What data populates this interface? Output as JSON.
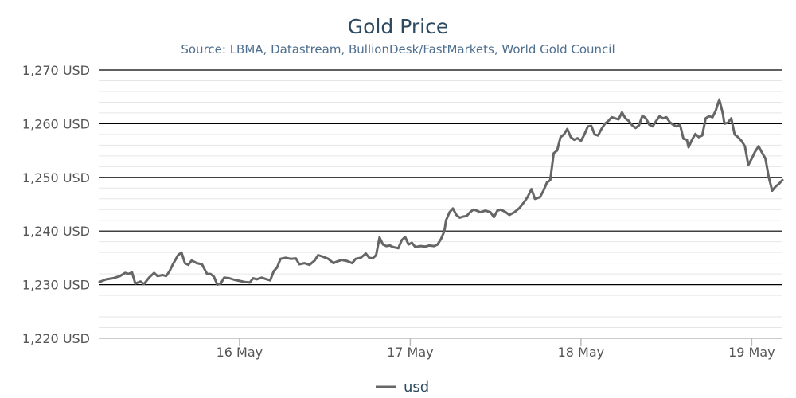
{
  "chart_data": {
    "type": "line",
    "title": "Gold Price",
    "subtitle": "Source: LBMA, Datastream, BullionDesk/FastMarkets, World Gold Council",
    "xlabel": "",
    "ylabel": "",
    "x_unit": "days",
    "x_ticks": [
      {
        "x": 1,
        "label": "16 May"
      },
      {
        "x": 2,
        "label": "17 May"
      },
      {
        "x": 3,
        "label": "18 May"
      },
      {
        "x": 4,
        "label": "19 May"
      }
    ],
    "xlim": [
      0.18,
      4.18
    ],
    "ylim": [
      1220,
      1270
    ],
    "y_ticks": [
      {
        "value": 1220,
        "label": "1,220 USD"
      },
      {
        "value": 1230,
        "label": "1,230 USD"
      },
      {
        "value": 1240,
        "label": "1,240 USD"
      },
      {
        "value": 1250,
        "label": "1,250 USD"
      },
      {
        "value": 1260,
        "label": "1,260 USD"
      },
      {
        "value": 1270,
        "label": "1,270 USD"
      }
    ],
    "grid": true,
    "legend_position": "bottom-center",
    "colors": {
      "line": "#666666",
      "title": "#2e4a60",
      "subtitle": "#4f6f8f",
      "major_grid": "#000000",
      "minor_grid": "#e6e6e6",
      "axis": "#bbbbbb"
    },
    "series": [
      {
        "name": "usd",
        "points": [
          [
            0.18,
            1230.5
          ],
          [
            0.22,
            1231.0
          ],
          [
            0.26,
            1231.2
          ],
          [
            0.3,
            1231.6
          ],
          [
            0.33,
            1232.2
          ],
          [
            0.35,
            1232.0
          ],
          [
            0.37,
            1232.3
          ],
          [
            0.39,
            1230.2
          ],
          [
            0.42,
            1230.6
          ],
          [
            0.44,
            1230.1
          ],
          [
            0.47,
            1231.3
          ],
          [
            0.5,
            1232.2
          ],
          [
            0.52,
            1231.6
          ],
          [
            0.55,
            1231.8
          ],
          [
            0.57,
            1231.6
          ],
          [
            0.59,
            1232.5
          ],
          [
            0.61,
            1233.8
          ],
          [
            0.64,
            1235.5
          ],
          [
            0.66,
            1236.0
          ],
          [
            0.68,
            1234.0
          ],
          [
            0.7,
            1233.7
          ],
          [
            0.72,
            1234.5
          ],
          [
            0.75,
            1234.0
          ],
          [
            0.78,
            1233.8
          ],
          [
            0.81,
            1232.0
          ],
          [
            0.83,
            1232.0
          ],
          [
            0.85,
            1231.5
          ],
          [
            0.87,
            1230.0
          ],
          [
            0.89,
            1230.2
          ],
          [
            0.91,
            1231.3
          ],
          [
            0.94,
            1231.2
          ],
          [
            0.97,
            1230.9
          ],
          [
            1.0,
            1230.7
          ],
          [
            1.03,
            1230.5
          ],
          [
            1.06,
            1230.4
          ],
          [
            1.08,
            1231.2
          ],
          [
            1.1,
            1231.0
          ],
          [
            1.13,
            1231.3
          ],
          [
            1.16,
            1231.0
          ],
          [
            1.18,
            1230.8
          ],
          [
            1.2,
            1232.5
          ],
          [
            1.22,
            1233.2
          ],
          [
            1.24,
            1234.8
          ],
          [
            1.27,
            1235.0
          ],
          [
            1.3,
            1234.8
          ],
          [
            1.33,
            1234.9
          ],
          [
            1.35,
            1233.8
          ],
          [
            1.38,
            1234.0
          ],
          [
            1.41,
            1233.7
          ],
          [
            1.44,
            1234.5
          ],
          [
            1.46,
            1235.5
          ],
          [
            1.49,
            1235.2
          ],
          [
            1.52,
            1234.8
          ],
          [
            1.55,
            1234.0
          ],
          [
            1.57,
            1234.3
          ],
          [
            1.6,
            1234.6
          ],
          [
            1.63,
            1234.4
          ],
          [
            1.66,
            1234.0
          ],
          [
            1.68,
            1234.8
          ],
          [
            1.71,
            1235.0
          ],
          [
            1.74,
            1235.8
          ],
          [
            1.76,
            1235.0
          ],
          [
            1.78,
            1234.9
          ],
          [
            1.8,
            1235.5
          ],
          [
            1.82,
            1238.8
          ],
          [
            1.84,
            1237.5
          ],
          [
            1.86,
            1237.2
          ],
          [
            1.88,
            1237.3
          ],
          [
            1.9,
            1237.0
          ],
          [
            1.93,
            1236.8
          ],
          [
            1.95,
            1238.3
          ],
          [
            1.97,
            1238.9
          ],
          [
            1.99,
            1237.5
          ],
          [
            2.01,
            1237.8
          ],
          [
            2.03,
            1237.0
          ],
          [
            2.06,
            1237.2
          ],
          [
            2.09,
            1237.1
          ],
          [
            2.11,
            1237.3
          ],
          [
            2.14,
            1237.2
          ],
          [
            2.16,
            1237.5
          ],
          [
            2.18,
            1238.5
          ],
          [
            2.2,
            1240.0
          ],
          [
            2.21,
            1242.0
          ],
          [
            2.23,
            1243.5
          ],
          [
            2.25,
            1244.2
          ],
          [
            2.27,
            1243.0
          ],
          [
            2.29,
            1242.5
          ],
          [
            2.31,
            1242.7
          ],
          [
            2.33,
            1242.8
          ],
          [
            2.35,
            1243.5
          ],
          [
            2.37,
            1244.0
          ],
          [
            2.39,
            1243.8
          ],
          [
            2.41,
            1243.5
          ],
          [
            2.44,
            1243.8
          ],
          [
            2.47,
            1243.5
          ],
          [
            2.49,
            1242.6
          ],
          [
            2.51,
            1243.8
          ],
          [
            2.53,
            1244.0
          ],
          [
            2.56,
            1243.5
          ],
          [
            2.58,
            1243.0
          ],
          [
            2.61,
            1243.5
          ],
          [
            2.64,
            1244.3
          ],
          [
            2.67,
            1245.5
          ],
          [
            2.69,
            1246.5
          ],
          [
            2.71,
            1247.8
          ],
          [
            2.73,
            1246.0
          ],
          [
            2.76,
            1246.3
          ],
          [
            2.78,
            1247.5
          ],
          [
            2.8,
            1249.0
          ],
          [
            2.82,
            1249.5
          ],
          [
            2.84,
            1254.5
          ],
          [
            2.86,
            1255.0
          ],
          [
            2.88,
            1257.5
          ],
          [
            2.9,
            1258.0
          ],
          [
            2.92,
            1259.0
          ],
          [
            2.94,
            1257.5
          ],
          [
            2.96,
            1257.0
          ],
          [
            2.98,
            1257.3
          ],
          [
            3.0,
            1256.8
          ],
          [
            3.02,
            1258.0
          ],
          [
            3.04,
            1259.5
          ],
          [
            3.06,
            1259.6
          ],
          [
            3.08,
            1258.0
          ],
          [
            3.1,
            1257.8
          ],
          [
            3.12,
            1259.0
          ],
          [
            3.14,
            1260.0
          ],
          [
            3.16,
            1260.5
          ],
          [
            3.18,
            1261.2
          ],
          [
            3.2,
            1261.0
          ],
          [
            3.22,
            1260.8
          ],
          [
            3.24,
            1262.1
          ],
          [
            3.26,
            1261.0
          ],
          [
            3.28,
            1260.5
          ],
          [
            3.3,
            1259.7
          ],
          [
            3.32,
            1259.2
          ],
          [
            3.34,
            1259.7
          ],
          [
            3.36,
            1261.5
          ],
          [
            3.38,
            1261.0
          ],
          [
            3.4,
            1259.8
          ],
          [
            3.42,
            1259.5
          ],
          [
            3.44,
            1260.5
          ],
          [
            3.46,
            1261.4
          ],
          [
            3.48,
            1261.0
          ],
          [
            3.5,
            1261.2
          ],
          [
            3.52,
            1260.3
          ],
          [
            3.54,
            1259.8
          ],
          [
            3.56,
            1259.5
          ],
          [
            3.58,
            1259.8
          ],
          [
            3.6,
            1257.2
          ],
          [
            3.62,
            1257.0
          ],
          [
            3.63,
            1255.6
          ],
          [
            3.65,
            1257.0
          ],
          [
            3.67,
            1258.1
          ],
          [
            3.69,
            1257.5
          ],
          [
            3.71,
            1257.8
          ],
          [
            3.73,
            1261.0
          ],
          [
            3.75,
            1261.4
          ],
          [
            3.77,
            1261.2
          ],
          [
            3.79,
            1262.5
          ],
          [
            3.81,
            1264.5
          ],
          [
            3.83,
            1262.0
          ],
          [
            3.84,
            1260.0
          ],
          [
            3.86,
            1260.2
          ],
          [
            3.88,
            1261.0
          ],
          [
            3.9,
            1258.0
          ],
          [
            3.92,
            1257.5
          ],
          [
            3.94,
            1256.8
          ],
          [
            3.96,
            1255.8
          ],
          [
            3.98,
            1252.3
          ],
          [
            4.0,
            1253.5
          ],
          [
            4.02,
            1254.8
          ],
          [
            4.04,
            1255.8
          ],
          [
            4.06,
            1254.6
          ],
          [
            4.08,
            1253.5
          ],
          [
            4.1,
            1250.0
          ],
          [
            4.12,
            1247.5
          ],
          [
            4.14,
            1248.3
          ],
          [
            4.16,
            1248.8
          ],
          [
            4.18,
            1249.5
          ]
        ]
      }
    ]
  }
}
